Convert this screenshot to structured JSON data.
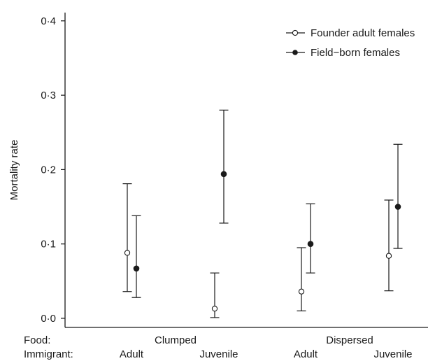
{
  "chart_data": {
    "type": "scatter",
    "title": "",
    "ylabel": "Mortality rate",
    "ylim": [
      0,
      0.4
    ],
    "y_ticks": [
      0,
      0.1,
      0.2,
      0.3,
      0.4
    ],
    "y_tick_labels": [
      "0·0",
      "0·1",
      "0·2",
      "0·3",
      "0·4"
    ],
    "grid": false,
    "legend_position": "top-right",
    "row_headers": [
      "Food:",
      "Immigrant:"
    ],
    "food_groups": [
      "Clumped",
      "Dispersed"
    ],
    "categories": [
      "Adult",
      "Juvenile",
      "Adult",
      "Juvenile"
    ],
    "series": [
      {
        "name": "Founder adult females",
        "marker": "open-circle",
        "values": [
          0.088,
          0.013,
          0.036,
          0.084
        ],
        "lower": [
          0.036,
          0.001,
          0.01,
          0.037
        ],
        "upper": [
          0.181,
          0.061,
          0.095,
          0.159
        ]
      },
      {
        "name": "Field−born females",
        "marker": "filled-circle",
        "values": [
          0.067,
          0.194,
          0.1,
          0.15
        ],
        "lower": [
          0.028,
          0.128,
          0.061,
          0.094
        ],
        "upper": [
          0.138,
          0.28,
          0.154,
          0.234
        ]
      }
    ]
  },
  "colors": {
    "ink": "#1a1a1a",
    "background": "#ffffff"
  }
}
